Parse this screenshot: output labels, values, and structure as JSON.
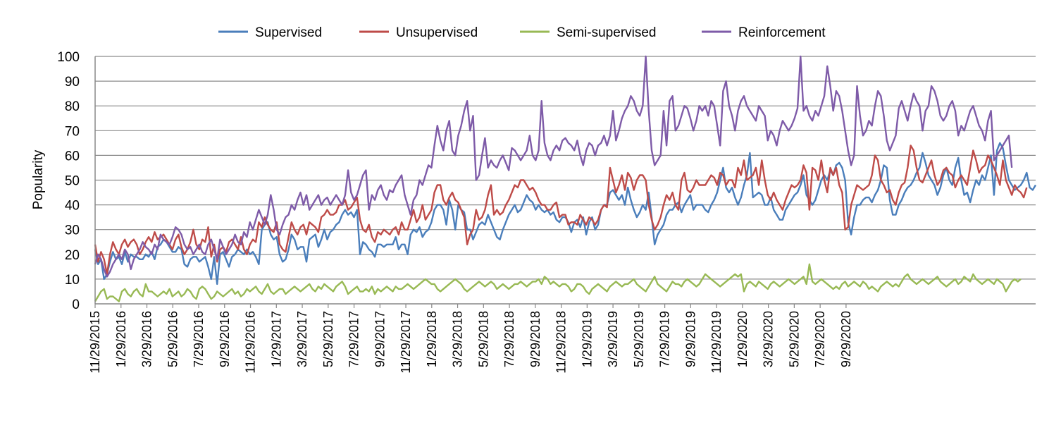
{
  "chart_data": {
    "type": "line",
    "title": "",
    "xlabel": "",
    "ylabel": "Popularity",
    "ylim": [
      0,
      100
    ],
    "yticks": [
      0,
      10,
      20,
      30,
      40,
      50,
      60,
      70,
      80,
      90,
      100
    ],
    "grid": true,
    "legend_position": "top-center",
    "x_tick_labels": [
      "11/29/2015",
      "1/29/2016",
      "3/29/2016",
      "5/29/2016",
      "7/29/2016",
      "9/29/2016",
      "11/29/2016",
      "1/29/2017",
      "3/29/2017",
      "5/29/2017",
      "7/29/2017",
      "9/29/2017",
      "11/29/2017",
      "1/29/2018",
      "3/29/2018",
      "5/29/2018",
      "7/29/2018",
      "9/29/2018",
      "11/29/2018",
      "1/29/2019",
      "3/29/2019",
      "5/29/2019",
      "7/29/2019",
      "9/29/2019",
      "11/29/2019",
      "1/29/2020",
      "3/29/2020",
      "5/29/2020",
      "7/29/2020",
      "9/29/2020"
    ],
    "x_weeks_between_ticks": 8.7,
    "series": [
      {
        "name": "Supervised",
        "color": "#4a7ebb",
        "values": [
          22,
          16,
          18,
          10,
          12,
          17,
          21,
          18,
          19,
          16,
          21,
          17,
          20,
          19,
          19,
          18,
          18,
          20,
          19,
          21,
          18,
          23,
          24,
          26,
          25,
          23,
          21,
          21,
          23,
          22,
          16,
          15,
          18,
          19,
          19,
          17,
          18,
          19,
          15,
          10,
          19,
          8,
          20,
          21,
          18,
          15,
          19,
          20,
          22,
          21,
          20,
          22,
          20,
          21,
          19,
          16,
          30,
          32,
          33,
          28,
          26,
          27,
          20,
          17,
          18,
          22,
          28,
          26,
          22,
          23,
          23,
          17,
          26,
          27,
          28,
          23,
          26,
          30,
          26,
          29,
          30,
          32,
          33,
          36,
          38,
          36,
          37,
          35,
          38,
          20,
          25,
          24,
          22,
          21,
          19,
          24,
          24,
          23,
          24,
          24,
          24,
          27,
          22,
          24,
          24,
          20,
          28,
          30,
          29,
          31,
          27,
          29,
          30,
          33,
          38,
          40,
          40,
          38,
          32,
          42,
          38,
          30,
          40,
          38,
          37,
          30,
          30,
          26,
          29,
          32,
          33,
          32,
          36,
          33,
          30,
          27,
          26,
          30,
          33,
          36,
          38,
          40,
          37,
          38,
          41,
          44,
          42,
          41,
          38,
          40,
          38,
          37,
          38,
          36,
          37,
          34,
          33,
          35,
          35,
          33,
          29,
          33,
          34,
          31,
          35,
          28,
          33,
          35,
          30,
          32,
          38,
          40,
          40,
          45,
          46,
          44,
          42,
          44,
          40,
          47,
          42,
          38,
          35,
          37,
          40,
          38,
          45,
          35,
          24,
          28,
          30,
          32,
          36,
          38,
          38,
          40,
          41,
          37,
          40,
          42,
          44,
          38,
          40,
          40,
          40,
          38,
          37,
          40,
          42,
          45,
          50,
          55,
          47,
          45,
          47,
          43,
          40,
          43,
          48,
          52,
          61,
          43,
          44,
          45,
          44,
          40,
          40,
          43,
          38,
          36,
          34,
          34,
          38,
          40,
          42,
          44,
          45,
          48,
          52,
          44,
          42,
          40,
          42,
          46,
          50,
          52,
          50,
          54,
          52,
          56,
          57,
          55,
          50,
          33,
          28,
          35,
          40,
          40,
          42,
          43,
          43,
          41,
          44,
          46,
          50,
          56,
          55,
          42,
          36,
          36,
          40,
          42,
          45,
          47,
          48,
          50,
          53,
          55,
          61,
          57,
          52,
          50,
          48,
          44,
          47,
          52,
          55,
          50,
          48,
          55,
          59,
          50,
          44,
          45,
          41,
          46,
          50,
          48,
          52,
          50,
          55,
          60,
          44,
          62,
          65,
          63,
          56,
          50,
          48,
          46,
          47,
          48,
          50,
          53,
          47,
          46,
          48
        ]
      },
      {
        "name": "Unsupervised",
        "color": "#be4b48",
        "values": [
          24,
          17,
          21,
          18,
          12,
          20,
          25,
          22,
          20,
          24,
          26,
          23,
          25,
          26,
          24,
          20,
          22,
          25,
          27,
          25,
          29,
          26,
          27,
          28,
          26,
          24,
          22,
          26,
          28,
          23,
          20,
          22,
          25,
          30,
          24,
          22,
          26,
          25,
          31,
          19,
          24,
          17,
          22,
          23,
          21,
          25,
          26,
          24,
          22,
          27,
          22,
          20,
          24,
          26,
          25,
          33,
          31,
          35,
          32,
          30,
          29,
          33,
          24,
          22,
          21,
          27,
          33,
          30,
          28,
          31,
          32,
          28,
          33,
          32,
          31,
          29,
          35,
          36,
          38,
          36,
          36,
          37,
          40,
          40,
          42,
          38,
          39,
          41,
          43,
          34,
          30,
          29,
          32,
          27,
          25,
          29,
          28,
          30,
          29,
          28,
          30,
          31,
          28,
          33,
          30,
          30,
          34,
          38,
          33,
          35,
          40,
          34,
          36,
          38,
          45,
          48,
          48,
          42,
          40,
          43,
          45,
          42,
          41,
          38,
          35,
          24,
          28,
          30,
          38,
          34,
          35,
          38,
          44,
          48,
          36,
          38,
          36,
          37,
          40,
          42,
          45,
          48,
          47,
          50,
          50,
          48,
          46,
          47,
          45,
          42,
          40,
          40,
          38,
          38,
          40,
          41,
          35,
          36,
          36,
          32,
          33,
          33,
          32,
          36,
          34,
          32,
          35,
          34,
          32,
          34,
          38,
          40,
          39,
          55,
          50,
          45,
          48,
          52,
          46,
          53,
          51,
          46,
          50,
          52,
          52,
          50,
          40,
          34,
          30,
          32,
          35,
          40,
          44,
          42,
          45,
          40,
          38,
          50,
          53,
          46,
          45,
          47,
          50,
          48,
          48,
          48,
          50,
          52,
          51,
          48,
          53,
          52,
          48,
          50,
          50,
          47,
          55,
          52,
          58,
          50,
          51,
          52,
          55,
          48,
          58,
          50,
          44,
          42,
          45,
          42,
          40,
          38,
          42,
          45,
          48,
          47,
          48,
          50,
          56,
          53,
          38,
          55,
          54,
          50,
          58,
          50,
          45,
          55,
          52,
          55,
          48,
          45,
          30,
          31,
          40,
          44,
          48,
          47,
          46,
          47,
          48,
          52,
          60,
          58,
          50,
          48,
          45,
          46,
          42,
          40,
          45,
          48,
          49,
          55,
          64,
          62,
          55,
          50,
          49,
          52,
          55,
          58,
          52,
          48,
          50,
          54,
          55,
          53,
          52,
          47,
          50,
          52,
          50,
          48,
          55,
          62,
          58,
          53,
          55,
          56,
          60,
          58,
          55,
          52,
          48,
          58,
          50,
          47,
          44,
          48,
          46,
          45,
          43,
          47
        ]
      },
      {
        "name": "Semi-supervised",
        "color": "#98b954",
        "values": [
          1,
          3,
          5,
          6,
          2,
          3,
          3,
          2,
          1,
          5,
          6,
          4,
          3,
          5,
          6,
          4,
          3,
          8,
          5,
          5,
          4,
          3,
          4,
          5,
          4,
          6,
          3,
          4,
          5,
          3,
          4,
          6,
          5,
          3,
          2,
          6,
          7,
          6,
          4,
          2,
          3,
          5,
          4,
          3,
          4,
          5,
          6,
          4,
          5,
          3,
          4,
          6,
          5,
          6,
          7,
          5,
          4,
          6,
          8,
          5,
          4,
          5,
          6,
          6,
          4,
          5,
          6,
          7,
          6,
          5,
          6,
          7,
          8,
          6,
          5,
          7,
          6,
          8,
          7,
          6,
          5,
          7,
          8,
          9,
          7,
          4,
          5,
          6,
          7,
          5,
          5,
          6,
          5,
          7,
          4,
          6,
          5,
          6,
          7,
          6,
          5,
          7,
          6,
          6,
          7,
          8,
          7,
          6,
          7,
          8,
          9,
          10,
          9,
          8,
          8,
          6,
          5,
          6,
          7,
          8,
          9,
          10,
          9,
          8,
          6,
          5,
          6,
          7,
          8,
          9,
          8,
          7,
          8,
          9,
          8,
          6,
          7,
          8,
          7,
          6,
          7,
          8,
          8,
          9,
          8,
          7,
          8,
          9,
          9,
          10,
          8,
          11,
          10,
          8,
          9,
          8,
          7,
          8,
          8,
          7,
          5,
          6,
          8,
          8,
          7,
          5,
          4,
          6,
          7,
          8,
          7,
          6,
          5,
          7,
          8,
          9,
          8,
          7,
          8,
          8,
          9,
          10,
          8,
          7,
          6,
          5,
          7,
          9,
          11,
          8,
          7,
          6,
          5,
          7,
          9,
          8,
          8,
          7,
          9,
          10,
          9,
          8,
          7,
          8,
          10,
          12,
          11,
          10,
          9,
          8,
          7,
          8,
          9,
          10,
          11,
          12,
          11,
          12,
          5,
          8,
          9,
          8,
          7,
          9,
          8,
          7,
          6,
          8,
          9,
          8,
          7,
          8,
          9,
          10,
          9,
          8,
          9,
          10,
          11,
          8,
          16,
          9,
          8,
          9,
          10,
          9,
          8,
          7,
          6,
          7,
          6,
          8,
          9,
          7,
          8,
          9,
          8,
          7,
          9,
          8,
          6,
          7,
          6,
          5,
          7,
          8,
          9,
          8,
          7,
          8,
          7,
          9,
          11,
          12,
          10,
          9,
          8,
          9,
          10,
          9,
          8,
          9,
          10,
          11,
          9,
          8,
          7,
          8,
          9,
          10,
          8,
          9,
          11,
          10,
          9,
          12,
          10,
          9,
          8,
          9,
          10,
          9,
          8,
          10,
          9,
          8,
          5,
          7,
          9,
          10,
          9,
          10
        ]
      },
      {
        "name": "Reinforcement",
        "color": "#7e5ba8",
        "values": [
          16,
          20,
          18,
          14,
          11,
          13,
          16,
          18,
          20,
          18,
          22,
          20,
          14,
          18,
          20,
          22,
          25,
          23,
          22,
          20,
          24,
          22,
          28,
          26,
          25,
          24,
          27,
          31,
          30,
          28,
          24,
          22,
          23,
          20,
          22,
          24,
          21,
          20,
          24,
          26,
          22,
          18,
          26,
          23,
          20,
          22,
          24,
          28,
          25,
          24,
          29,
          27,
          33,
          30,
          34,
          38,
          35,
          32,
          36,
          44,
          38,
          30,
          28,
          32,
          35,
          36,
          40,
          38,
          42,
          45,
          40,
          44,
          38,
          40,
          42,
          44,
          40,
          42,
          43,
          40,
          42,
          44,
          42,
          40,
          44,
          54,
          45,
          42,
          44,
          48,
          52,
          54,
          38,
          44,
          42,
          46,
          48,
          44,
          42,
          46,
          45,
          48,
          50,
          52,
          44,
          40,
          36,
          42,
          44,
          50,
          48,
          52,
          56,
          55,
          64,
          72,
          66,
          62,
          70,
          74,
          62,
          60,
          68,
          72,
          78,
          82,
          70,
          76,
          50,
          52,
          60,
          67,
          55,
          58,
          56,
          55,
          58,
          60,
          57,
          54,
          63,
          62,
          60,
          58,
          60,
          62,
          68,
          60,
          58,
          62,
          82,
          65,
          60,
          58,
          62,
          64,
          62,
          66,
          67,
          65,
          64,
          62,
          66,
          60,
          56,
          62,
          65,
          64,
          60,
          64,
          65,
          68,
          64,
          68,
          78,
          66,
          70,
          75,
          78,
          80,
          84,
          82,
          78,
          76,
          80,
          100,
          78,
          62,
          56,
          58,
          60,
          78,
          64,
          82,
          84,
          70,
          72,
          76,
          80,
          79,
          75,
          70,
          74,
          80,
          78,
          80,
          76,
          82,
          80,
          72,
          64,
          86,
          90,
          80,
          76,
          70,
          78,
          82,
          84,
          80,
          78,
          76,
          74,
          80,
          78,
          76,
          66,
          70,
          68,
          64,
          70,
          74,
          72,
          70,
          72,
          75,
          79,
          100,
          78,
          80,
          76,
          74,
          78,
          76,
          80,
          84,
          96,
          88,
          78,
          86,
          84,
          78,
          70,
          62,
          56,
          60,
          88,
          76,
          68,
          70,
          74,
          72,
          80,
          86,
          84,
          76,
          66,
          62,
          65,
          68,
          79,
          82,
          78,
          74,
          80,
          85,
          82,
          80,
          70,
          78,
          80,
          88,
          86,
          82,
          76,
          74,
          76,
          80,
          82,
          78,
          68,
          72,
          70,
          74,
          78,
          80,
          76,
          72,
          70,
          66,
          74,
          78,
          58,
          60,
          62,
          64,
          66,
          68,
          55
        ]
      }
    ]
  }
}
